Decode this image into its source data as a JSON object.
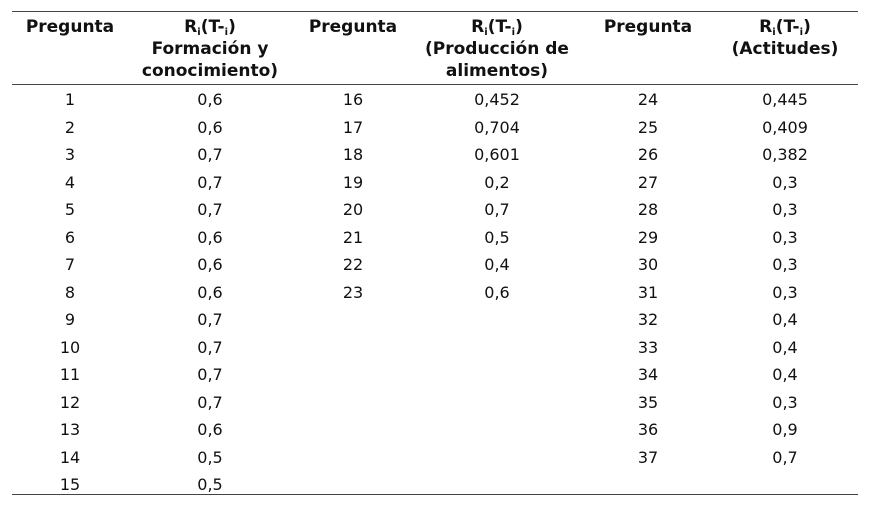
{
  "headers": {
    "preg1": "Pregunta",
    "ri1": {
      "r": "R",
      "sub1": "i",
      "mid": "(T-",
      "sub2": "i",
      "end": ")",
      "line2": "Formación y",
      "line3": "conocimiento)"
    },
    "preg2": "Pregunta",
    "ri2": {
      "r": "R",
      "sub1": "i",
      "mid": "(T-",
      "sub2": "i",
      "end": ")",
      "line2": "(Producción de",
      "line3": "alimentos)"
    },
    "preg3": "Pregunta",
    "ri3": {
      "r": "R",
      "sub1": "i",
      "mid": "(T-",
      "sub2": "i",
      "end": ")",
      "line2": "(Actitudes)"
    }
  },
  "group1": [
    {
      "q": "1",
      "v": "0,6"
    },
    {
      "q": "2",
      "v": "0,6"
    },
    {
      "q": "3",
      "v": "0,7"
    },
    {
      "q": "4",
      "v": "0,7"
    },
    {
      "q": "5",
      "v": "0,7"
    },
    {
      "q": "6",
      "v": "0,6"
    },
    {
      "q": "7",
      "v": "0,6"
    },
    {
      "q": "8",
      "v": "0,6"
    },
    {
      "q": "9",
      "v": "0,7"
    },
    {
      "q": "10",
      "v": "0,7"
    },
    {
      "q": "11",
      "v": "0,7"
    },
    {
      "q": "12",
      "v": "0,7"
    },
    {
      "q": "13",
      "v": "0,6"
    },
    {
      "q": "14",
      "v": "0,5"
    },
    {
      "q": "15",
      "v": "0,5"
    }
  ],
  "group2": [
    {
      "q": "16",
      "v": "0,452"
    },
    {
      "q": "17",
      "v": "0,704"
    },
    {
      "q": "18",
      "v": "0,601"
    },
    {
      "q": "19",
      "v": "0,2"
    },
    {
      "q": "20",
      "v": "0,7"
    },
    {
      "q": "21",
      "v": "0,5"
    },
    {
      "q": "22",
      "v": "0,4"
    },
    {
      "q": "23",
      "v": "0,6"
    }
  ],
  "group3": [
    {
      "q": "24",
      "v": "0,445"
    },
    {
      "q": "25",
      "v": "0,409"
    },
    {
      "q": "26",
      "v": "0,382"
    },
    {
      "q": "27",
      "v": "0,3"
    },
    {
      "q": "28",
      "v": "0,3"
    },
    {
      "q": "29",
      "v": "0,3"
    },
    {
      "q": "30",
      "v": "0,3"
    },
    {
      "q": "31",
      "v": "0,3"
    },
    {
      "q": "32",
      "v": "0,4"
    },
    {
      "q": "33",
      "v": "0,4"
    },
    {
      "q": "34",
      "v": "0,4"
    },
    {
      "q": "35",
      "v": "0,3"
    },
    {
      "q": "36",
      "v": "0,9"
    },
    {
      "q": "37",
      "v": "0,7"
    }
  ]
}
